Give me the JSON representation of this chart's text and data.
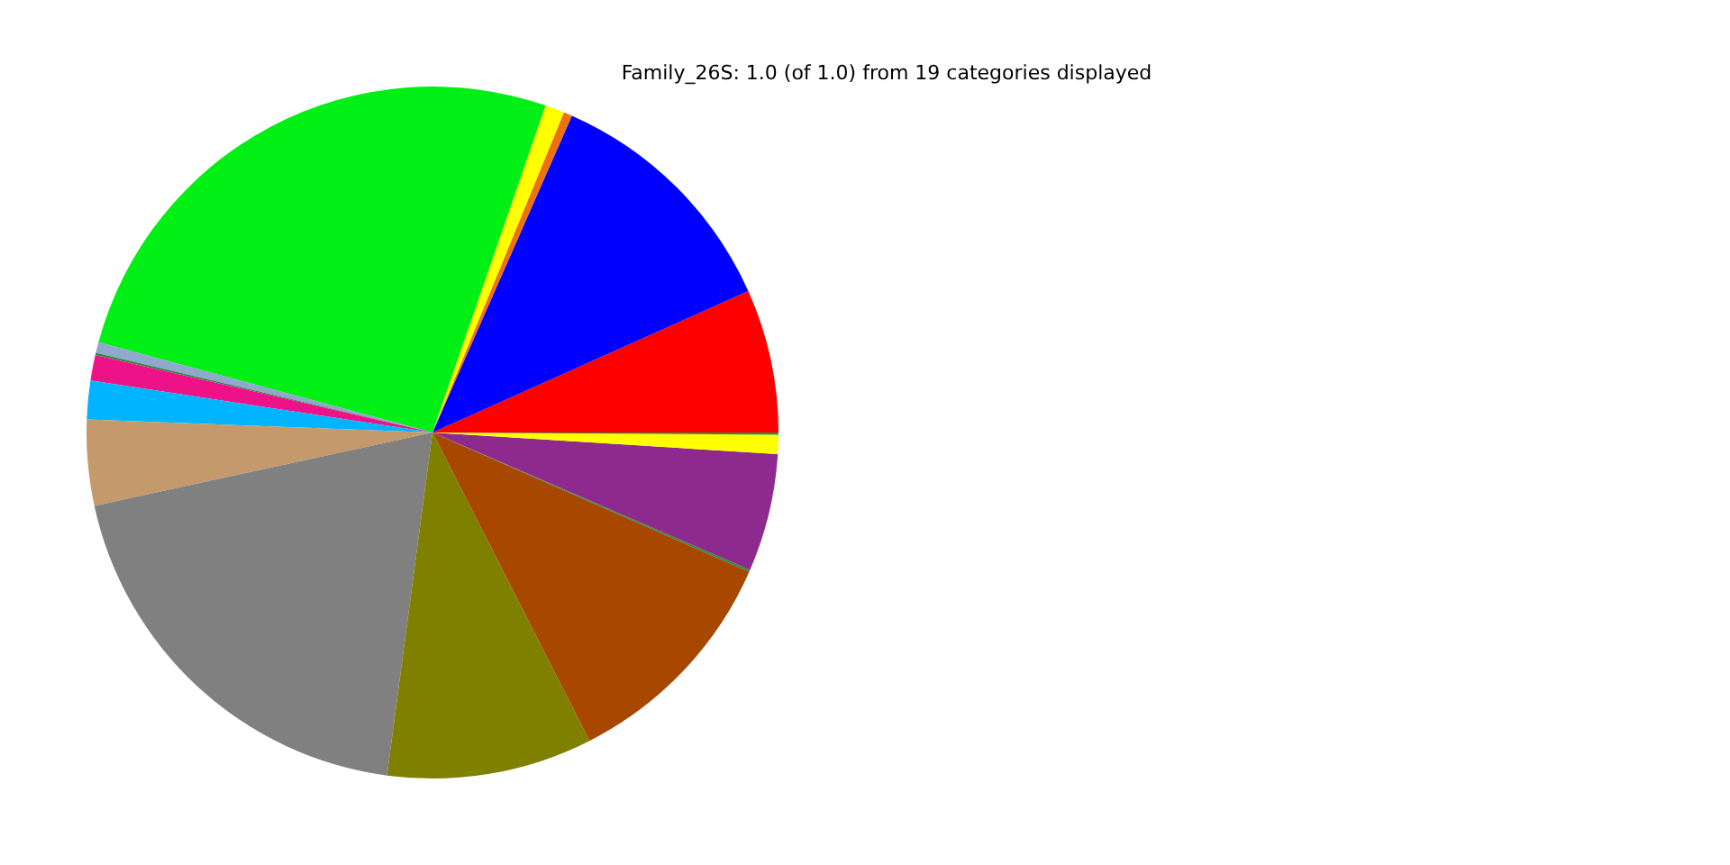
{
  "chart_data": {
    "type": "pie",
    "title": "Family_26S: 1.0 (of 1.0) from 19 categories displayed",
    "categories": [
      null,
      null,
      null,
      null,
      null,
      null,
      null,
      null,
      null,
      null,
      null,
      null,
      null,
      null,
      null,
      null,
      null
    ],
    "values": [
      6.7,
      11.7,
      0.4,
      0.9,
      26.1,
      0.5,
      0.1,
      1.2,
      1.8,
      4.0,
      19.5,
      9.6,
      10.9,
      0.1,
      5.5,
      0.9,
      0.1
    ],
    "colors": [
      "#ff0000",
      "#0000ff",
      "#ee7011",
      "#ffff00",
      "#00f015",
      "#8fa8cc",
      "#2e8b3c",
      "#ee1289",
      "#00b4ff",
      "#c49a6c",
      "#808080",
      "#808000",
      "#a84800",
      "#2e8b3c",
      "#8e2a8e",
      "#ffff00",
      "#2e8b3c"
    ]
  }
}
